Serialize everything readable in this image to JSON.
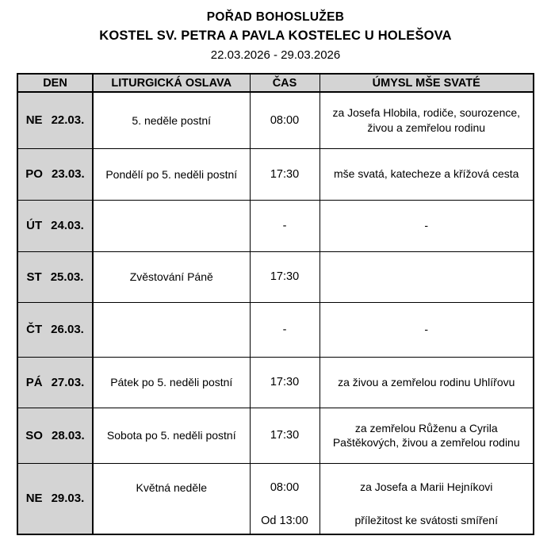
{
  "header": {
    "title": "POŘAD BOHOSLUŽEB",
    "subtitle": "KOSTEL SV. PETRA A PAVLA KOSTELEC U HOLEŠOVA",
    "date_range": "22.03.2026 - 29.03.2026"
  },
  "colors": {
    "header_bg": "#d4d4d4",
    "day_column_bg": "#d4d4d4",
    "border": "#000000"
  },
  "table": {
    "columns": {
      "den": "DEN",
      "oslava": "LITURGICKÁ OSLAVA",
      "cas": "ČAS",
      "umysl": "ÚMYSL MŠE SVATÉ"
    },
    "rows": [
      {
        "day": "NE",
        "date": "22.03.",
        "celebration": "5. neděle postní",
        "time": "08:00",
        "intention": "za Josefa Hlobila, rodiče, sourozence, živou a zemřelou rodinu"
      },
      {
        "day": "PO",
        "date": "23.03.",
        "celebration": "Pondělí po 5. neděli postní",
        "time": "17:30",
        "intention": "mše svatá, katecheze a křížová cesta"
      },
      {
        "day": "ÚT",
        "date": "24.03.",
        "celebration": "",
        "time": "-",
        "intention": "-"
      },
      {
        "day": "ST",
        "date": "25.03.",
        "celebration": "Zvěstování Páně",
        "time": "17:30",
        "intention": ""
      },
      {
        "day": "ČT",
        "date": "26.03.",
        "celebration": "",
        "time": "-",
        "intention": "-"
      },
      {
        "day": "PÁ",
        "date": "27.03.",
        "celebration": "Pátek po 5. neděli postní",
        "time": "17:30",
        "intention": "za živou a zemřelou rodinu Uhlířovu"
      },
      {
        "day": "SO",
        "date": "28.03.",
        "celebration": "Sobota po 5. neděli postní",
        "time": "17:30",
        "intention": "za zemřelou Růženu a Cyrila Paštěkových, živou a zemřelou rodinu"
      },
      {
        "day": "NE",
        "date": "29.03.",
        "celebration": "Květná neděle",
        "time": "08:00",
        "intention": "za Josefa a Marii Hejníkovi",
        "time2": "Od 13:00",
        "intention2": "příležitost ke svátosti smíření"
      }
    ]
  }
}
